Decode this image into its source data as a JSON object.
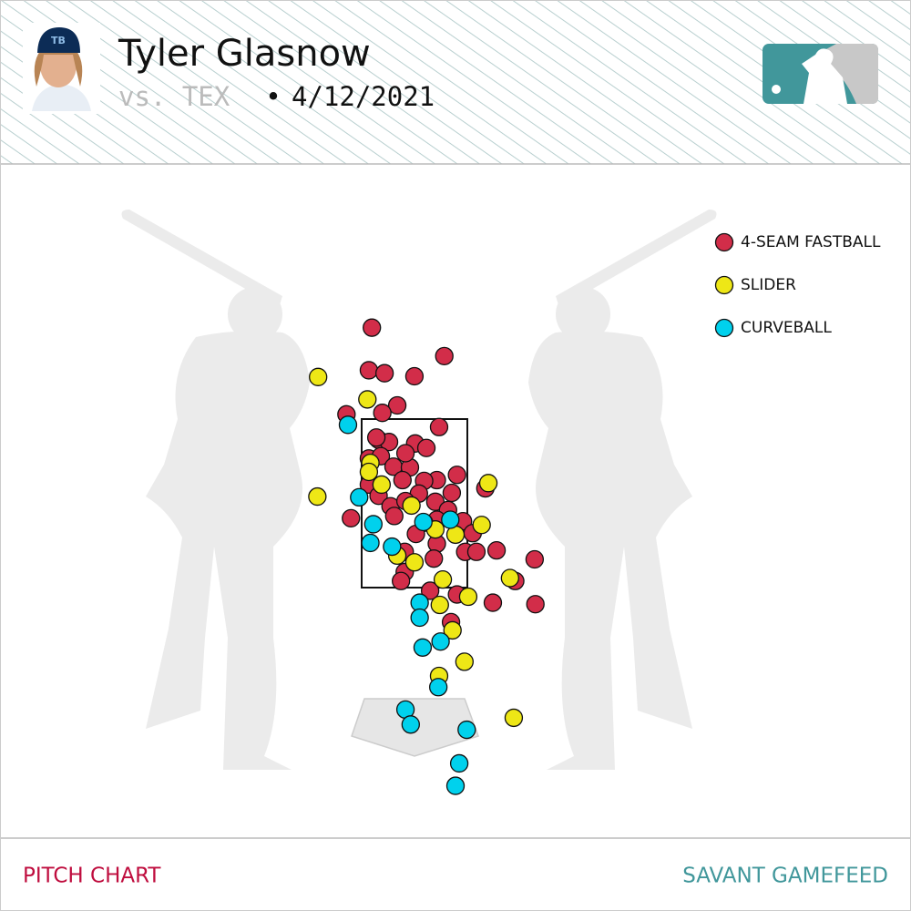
{
  "header": {
    "player": "Tyler Glasnow",
    "opponent": "vs. TEX",
    "date": "4/12/2021"
  },
  "footer": {
    "left": "PITCH CHART",
    "right": "SAVANT GAMEFEED"
  },
  "chart_data": {
    "type": "scatter",
    "legend": "upper right",
    "xlim": [
      -5.55,
      6.65
    ],
    "ylim": [
      -1.85,
      7.17
    ],
    "series": [
      {
        "name": "4-SEAM FASTBALL",
        "color": "#d22d49",
        "x": [
          -0.57,
          0.4,
          -0.61,
          -0.4,
          0.0,
          -0.91,
          -0.23,
          -0.43,
          0.33,
          -0.48,
          -0.34,
          0.01,
          0.16,
          -0.61,
          -0.45,
          -0.28,
          -0.06,
          -0.12,
          0.57,
          0.3,
          0.13,
          -0.16,
          -0.61,
          0.5,
          0.95,
          -0.48,
          0.06,
          -0.32,
          -0.12,
          0.28,
          -0.85,
          -0.27,
          0.45,
          0.3,
          0.65,
          0.13,
          0.02,
          0.3,
          0.78,
          0.68,
          0.83,
          1.1,
          1.61,
          -0.13,
          0.26,
          -0.13,
          -0.18,
          1.35,
          0.21,
          0.57,
          1.05,
          1.62,
          0.49,
          -0.51
        ],
        "values": [
          4.98,
          4.6,
          4.41,
          4.37,
          4.33,
          3.82,
          3.94,
          3.84,
          3.65,
          3.48,
          3.45,
          3.43,
          3.37,
          3.23,
          3.26,
          3.12,
          3.11,
          3.3,
          3.01,
          2.94,
          2.93,
          2.94,
          2.88,
          2.77,
          2.83,
          2.73,
          2.76,
          2.59,
          2.66,
          2.65,
          2.43,
          2.46,
          2.54,
          2.41,
          2.39,
          2.37,
          2.22,
          2.09,
          2.23,
          1.98,
          1.98,
          2.0,
          1.88,
          1.98,
          1.89,
          1.71,
          1.59,
          1.59,
          1.46,
          1.41,
          1.3,
          1.28,
          1.04,
          3.51
        ]
      },
      {
        "name": "SLIDER",
        "color": "#eee716",
        "x": [
          -1.29,
          -0.63,
          -0.59,
          -0.61,
          -0.44,
          0.99,
          -1.3,
          -0.04,
          0.9,
          0.28,
          0.55,
          -0.23,
          0.0,
          1.28,
          0.38,
          0.72,
          0.34,
          0.51,
          0.67,
          0.33,
          1.33
        ],
        "values": [
          4.32,
          4.02,
          3.17,
          3.05,
          2.88,
          2.9,
          2.72,
          2.6,
          2.34,
          2.28,
          2.21,
          1.93,
          1.84,
          1.63,
          1.61,
          1.38,
          1.27,
          0.93,
          0.51,
          0.32,
          -0.24
        ]
      },
      {
        "name": "CURVEBALL",
        "color": "#00d1ed",
        "x": [
          -0.89,
          -0.74,
          -0.55,
          0.12,
          0.48,
          -0.59,
          -0.3,
          0.07,
          0.07,
          0.11,
          0.35,
          0.32,
          -0.12,
          -0.05,
          0.7,
          0.6,
          0.55
        ],
        "values": [
          3.68,
          2.71,
          2.35,
          2.38,
          2.41,
          2.1,
          2.05,
          1.3,
          1.1,
          0.7,
          0.78,
          0.17,
          -0.13,
          -0.33,
          -0.4,
          -0.85,
          -1.15
        ]
      }
    ]
  }
}
